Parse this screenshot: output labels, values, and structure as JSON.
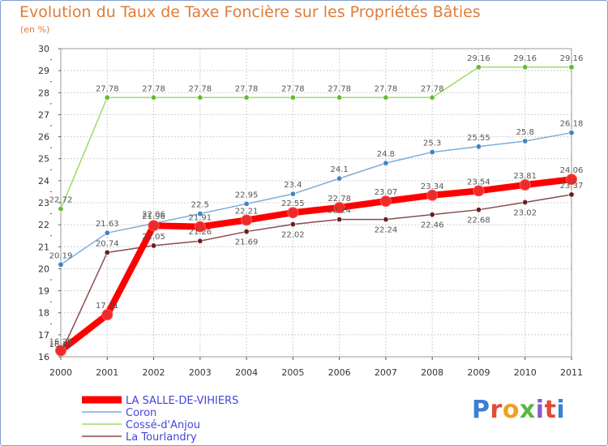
{
  "title": "Evolution du Taux de Taxe Foncière sur les Propriétés Bâties",
  "unit": "(en %)",
  "logo": "Proxiti",
  "colors": {
    "title": "#e07b39",
    "grid": "#cfcfcf",
    "legend_text": "#4444dd"
  },
  "chart_data": {
    "type": "line",
    "title": "Evolution du Taux de Taxe Foncière sur les Propriétés Bâties",
    "ylabel": "(en %)",
    "xlabel": "",
    "x": [
      "2000",
      "2001",
      "2002",
      "2003",
      "2004",
      "2005",
      "2006",
      "2007",
      "2008",
      "2009",
      "2010",
      "2011"
    ],
    "ylim": [
      16,
      30
    ],
    "yticks": [
      16,
      17,
      18,
      19,
      20,
      21,
      22,
      23,
      24,
      25,
      26,
      27,
      28,
      29,
      30
    ],
    "grid": true,
    "legend": "bottom-left",
    "series": [
      {
        "name": "LA SALLE-DE-VIHIERS",
        "color": "#ff0000",
        "marker": "#ee2a2a",
        "width": 8,
        "values": [
          16.28,
          17.91,
          21.96,
          21.91,
          22.21,
          22.55,
          22.78,
          23.07,
          23.34,
          23.54,
          23.81,
          24.06
        ],
        "labels": [
          "16.28",
          "17.91",
          "21.96",
          "21.91",
          "22.21",
          "22.55",
          "22.78",
          "23.07",
          "23.34",
          "23.54",
          "23.81",
          "24.06"
        ],
        "label_pos": [
          "above",
          "above",
          "above",
          "above",
          "above",
          "above",
          "above",
          "above",
          "above",
          "above",
          "above",
          "above"
        ]
      },
      {
        "name": "Coron",
        "color": "#7aaedc",
        "marker": "#3d85c6",
        "width": 1.5,
        "values": [
          20.19,
          21.63,
          22.06,
          22.5,
          22.95,
          23.4,
          24.1,
          24.8,
          25.3,
          25.55,
          25.8,
          26.18
        ],
        "labels": [
          "20.19",
          "21.63",
          "22.06",
          "22.5",
          "22.95",
          "23.4",
          "24.1",
          "24.8",
          "25.3",
          "25.55",
          "25.8",
          "26.18"
        ],
        "label_pos": [
          "above",
          "above",
          "above",
          "above",
          "above",
          "above",
          "above",
          "above",
          "above",
          "above",
          "above",
          "above"
        ]
      },
      {
        "name": "Cossé-d'Anjou",
        "color": "#99dd66",
        "marker": "#66bb33",
        "width": 1.5,
        "values": [
          22.72,
          27.78,
          27.78,
          27.78,
          27.78,
          27.78,
          27.78,
          27.78,
          27.78,
          29.16,
          29.16,
          29.16
        ],
        "labels": [
          "22.72",
          "27.78",
          "27.78",
          "27.78",
          "27.78",
          "27.78",
          "27.78",
          "27.78",
          "27.78",
          "29.16",
          "29.16",
          "29.16"
        ],
        "label_pos": [
          "above",
          "above",
          "above",
          "above",
          "above",
          "above",
          "above",
          "above",
          "above",
          "above",
          "above",
          "above"
        ]
      },
      {
        "name": "La Tourlandry",
        "color": "#8a4b4b",
        "marker": "#6b1f1f",
        "width": 1.5,
        "values": [
          16.15,
          20.74,
          21.05,
          21.26,
          21.69,
          22.02,
          22.24,
          22.24,
          22.46,
          22.68,
          23.02,
          23.37
        ],
        "labels": [
          "16.15",
          "20.74",
          "21.05",
          "21.26",
          "21.69",
          "22.02",
          "22.24",
          "22.24",
          "22.46",
          "22.68",
          "23.02",
          "23.37"
        ],
        "label_pos": [
          "above",
          "above",
          "above",
          "above",
          "below",
          "below",
          "above",
          "below",
          "below",
          "below",
          "below",
          "above"
        ]
      }
    ]
  }
}
